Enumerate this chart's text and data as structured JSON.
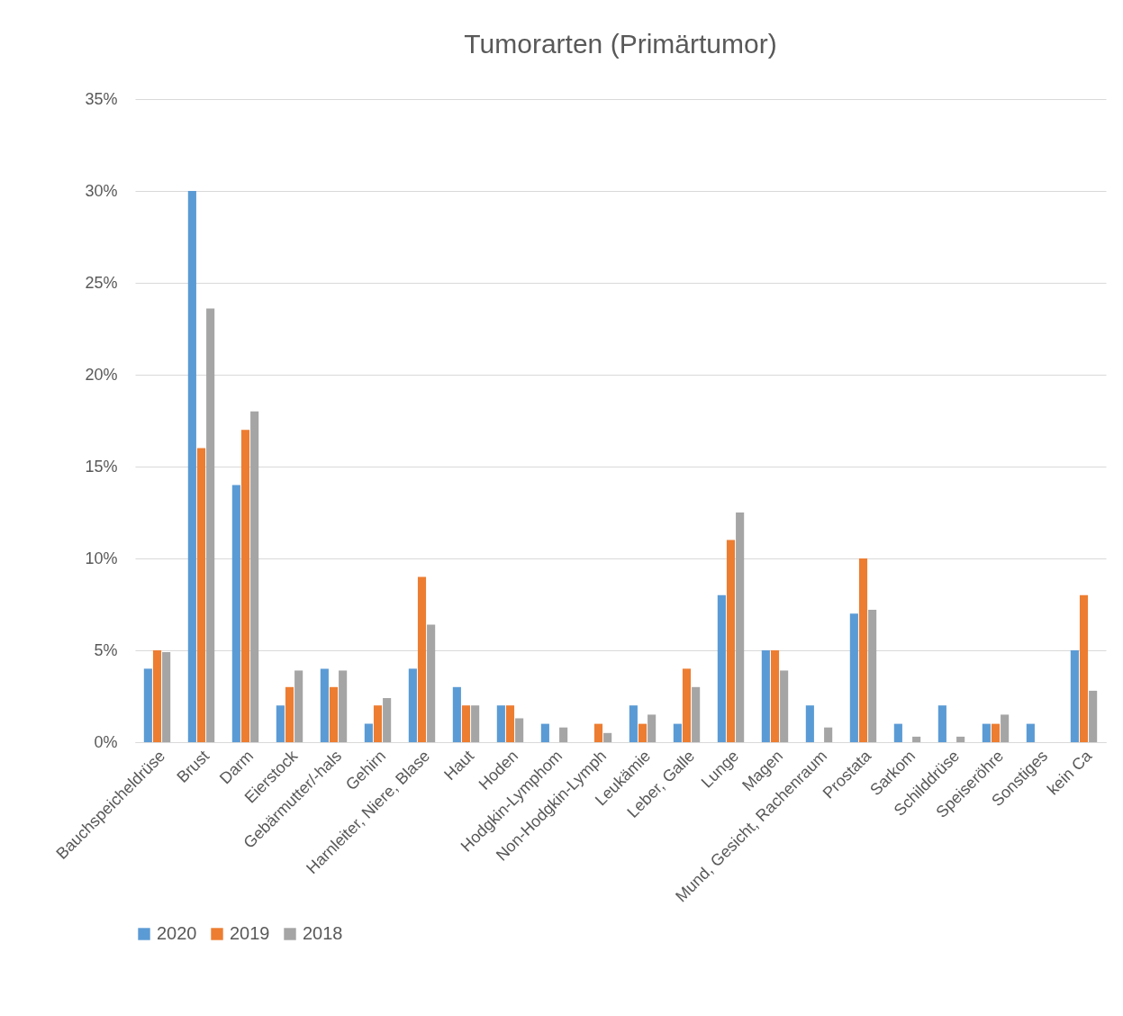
{
  "chart_data": {
    "type": "bar",
    "title": "Tumorarten (Primärtumor)",
    "categories": [
      "Bauchspeicheldrüse",
      "Brust",
      "Darm",
      "Eierstock",
      "Gebärmutter/-hals",
      "Gehirn",
      "Harnleiter, Niere, Blase",
      "Haut",
      "Hoden",
      "Hodgkin-Lymphom",
      "Non-Hodgkin-Lymph",
      "Leukämie",
      "Leber, Galle",
      "Lunge",
      "Magen",
      "Mund, Gesicht, Rachenraum",
      "Prostata",
      "Sarkom",
      "Schilddrüse",
      "Speiseröhre",
      "Sonstiges",
      "kein Ca"
    ],
    "series": [
      {
        "name": "2020",
        "color": "#5b9bd5",
        "values": [
          4,
          30,
          14,
          2,
          4,
          1,
          4,
          3,
          2,
          1,
          0,
          2,
          1,
          8,
          5,
          2,
          7,
          1,
          2,
          1,
          1,
          5
        ]
      },
      {
        "name": "2019",
        "color": "#ed7d31",
        "values": [
          5,
          16,
          17,
          3,
          3,
          2,
          9,
          2,
          2,
          0,
          1,
          1,
          4,
          11,
          5,
          0,
          10,
          0,
          0,
          1,
          0,
          8
        ]
      },
      {
        "name": "2018",
        "color": "#a5a5a5",
        "values": [
          4.9,
          23.6,
          18.0,
          3.9,
          3.9,
          2.4,
          6.4,
          2.0,
          1.3,
          0.8,
          0.5,
          1.5,
          3.0,
          12.5,
          3.9,
          0.8,
          7.2,
          0.3,
          0.3,
          1.5,
          0,
          2.8
        ]
      }
    ],
    "ylim": [
      0,
      35
    ],
    "yticks": [
      {
        "value": 0,
        "label": "0%"
      },
      {
        "value": 5,
        "label": "5%"
      },
      {
        "value": 10,
        "label": "10%"
      },
      {
        "value": 15,
        "label": "15%"
      },
      {
        "value": 20,
        "label": "20%"
      },
      {
        "value": 25,
        "label": "25%"
      },
      {
        "value": 30,
        "label": "30%"
      },
      {
        "value": 35,
        "label": "35%"
      }
    ],
    "grid": "y",
    "legend": "bottom"
  }
}
